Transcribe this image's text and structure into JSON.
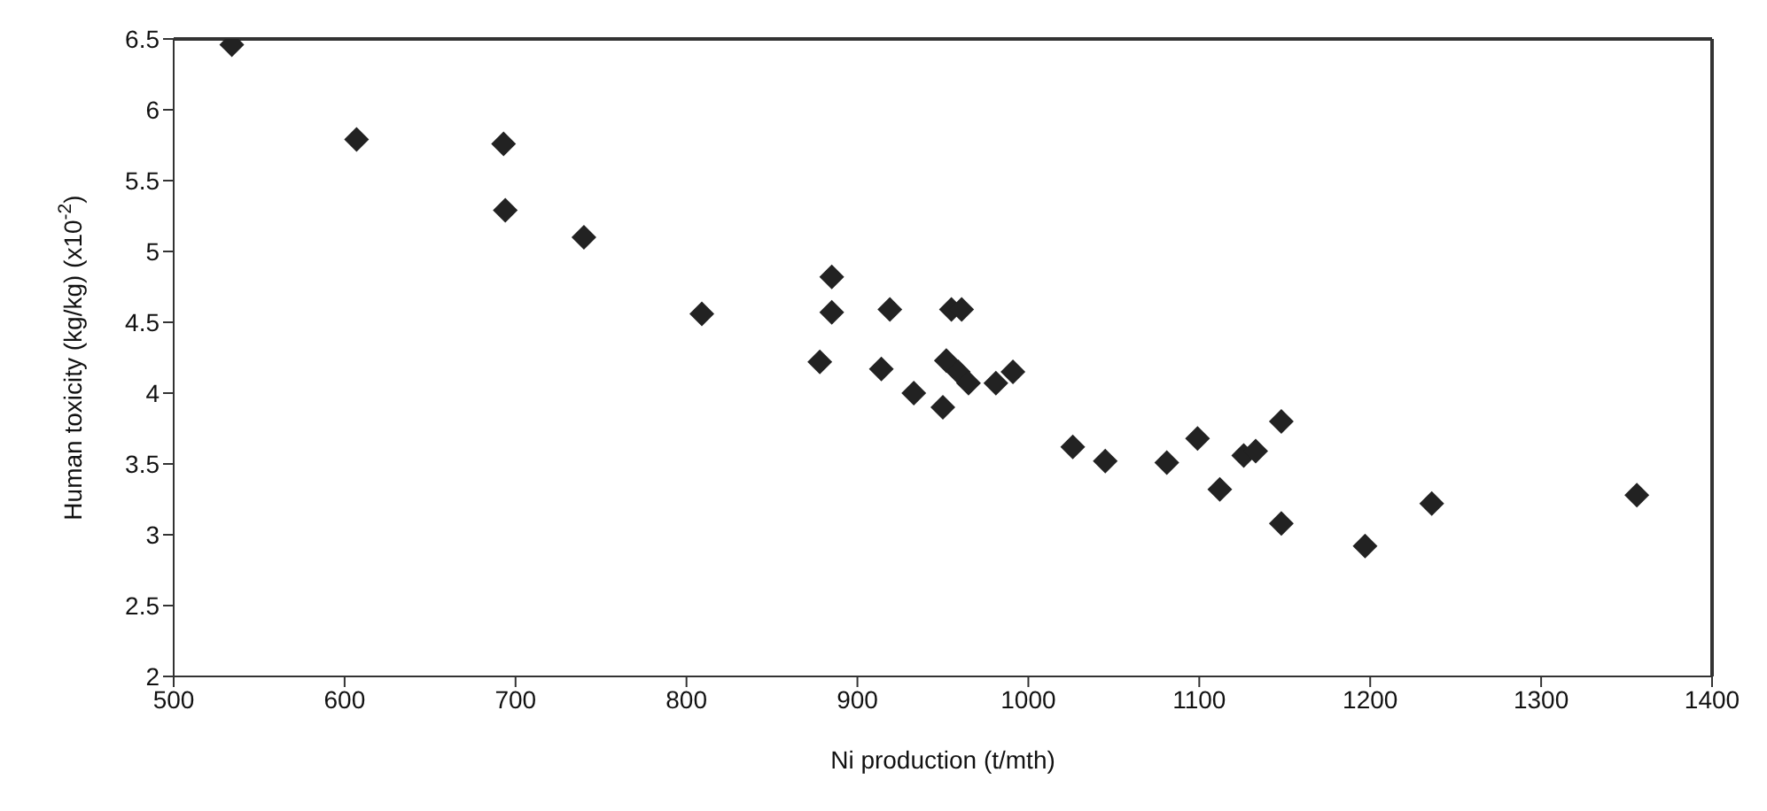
{
  "chart_data": {
    "type": "scatter",
    "xlabel": "Ni production (t/mth)",
    "ylabel": "Human toxicity (kg/kg) (x10$^{-2}$)",
    "x": [
      534,
      607,
      693,
      694,
      740,
      809,
      878,
      885,
      885,
      919,
      914,
      933,
      950,
      952,
      955,
      961,
      959,
      965,
      981,
      991,
      1026,
      1045,
      1081,
      1099,
      1112,
      1126,
      1133,
      1148,
      1148,
      1197,
      1236,
      1356
    ],
    "series": [
      {
        "color": "#222222",
        "values": [
          6.46,
          5.79,
          5.76,
          5.29,
          5.1,
          4.56,
          4.22,
          4.82,
          4.57,
          4.59,
          4.17,
          4.0,
          3.9,
          4.23,
          4.59,
          4.59,
          4.15,
          4.07,
          4.07,
          4.15,
          3.62,
          3.52,
          3.51,
          3.68,
          3.32,
          3.56,
          3.59,
          3.8,
          3.08,
          2.92,
          3.22,
          3.28
        ]
      }
    ],
    "xlim": [
      500,
      1400
    ],
    "xticks": [
      500,
      600,
      700,
      800,
      900,
      1000,
      1100,
      1200,
      1300,
      1400
    ],
    "ylim": [
      2,
      6.5
    ],
    "yticks": [
      2,
      2.5,
      3,
      3.5,
      4,
      4.5,
      5,
      5.5,
      6,
      6.5
    ],
    "marker": "diamond",
    "grid": false,
    "legend": false
  }
}
